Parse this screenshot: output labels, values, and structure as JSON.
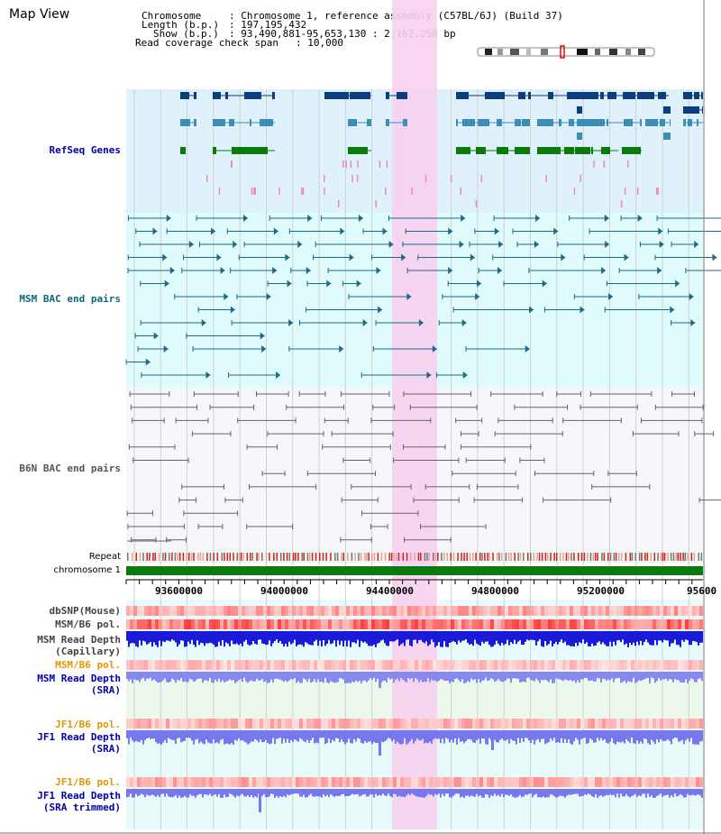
{
  "header": {
    "title": "Map View",
    "chromosome_label": "Chromosome",
    "chromosome_value": ": Chromosome 1, reference assembly (C57BL/6J) (Build 37)",
    "length_label": "Length (b.p.)",
    "length_value": ": 197,195,432",
    "show_label": "Show (b.p.)",
    "show_value": ": 93,490,881-95,653,130 : 2,162,250 bp",
    "coverage_label": "Read coverage check span",
    "coverage_value": ": 10,000"
  },
  "tracks": {
    "refseq": "RefSeq Genes",
    "msm_bac": "MSM BAC end pairs",
    "b6n_bac": "B6N BAC end pairs",
    "repeat": "Repeat",
    "chromosome": "chromosome 1",
    "dbsnp": "dbSNP(Mouse)",
    "msm_b6_pol": "MSM/B6 pol.",
    "msm_depth_cap_1": "MSM Read Depth",
    "msm_depth_cap_2": "(Capillary)",
    "msm_b6_pol_2": "MSM/B6 pol.",
    "msm_depth_sra_1": "MSM Read Depth",
    "msm_depth_sra_2": "(SRA)",
    "jf1_b6_pol": "JF1/B6 pol.",
    "jf1_depth_sra_1": "JF1 Read Depth",
    "jf1_depth_sra_2": "(SRA)",
    "jf1_b6_pol_2": "JF1/B6 pol.",
    "jf1_depth_trim_1": "JF1 Read Depth",
    "jf1_depth_trim_2": "(SRA trimmed)"
  },
  "axis": {
    "ticks": [
      "93600000",
      "94000000",
      "94400000",
      "94800000",
      "95200000",
      "95600"
    ]
  },
  "colors": {
    "refseq_bg": "#dff1fa",
    "msm_bg": "#e0fbfb",
    "b6n_bg": "#f6f7fc",
    "highlight": "#f7d0f0",
    "gene_dark": "#0d3d7a",
    "gene_mid": "#3d8db5",
    "gene_green": "#0a7a0a",
    "msm_line": "#1d6a85",
    "b6n_line": "#666666",
    "chromosome": "#0a7a0a",
    "label_red": "#cc0000",
    "label_orange": "#e69500",
    "label_blue": "#0000aa",
    "label_teal": "#0a6a7a"
  }
}
